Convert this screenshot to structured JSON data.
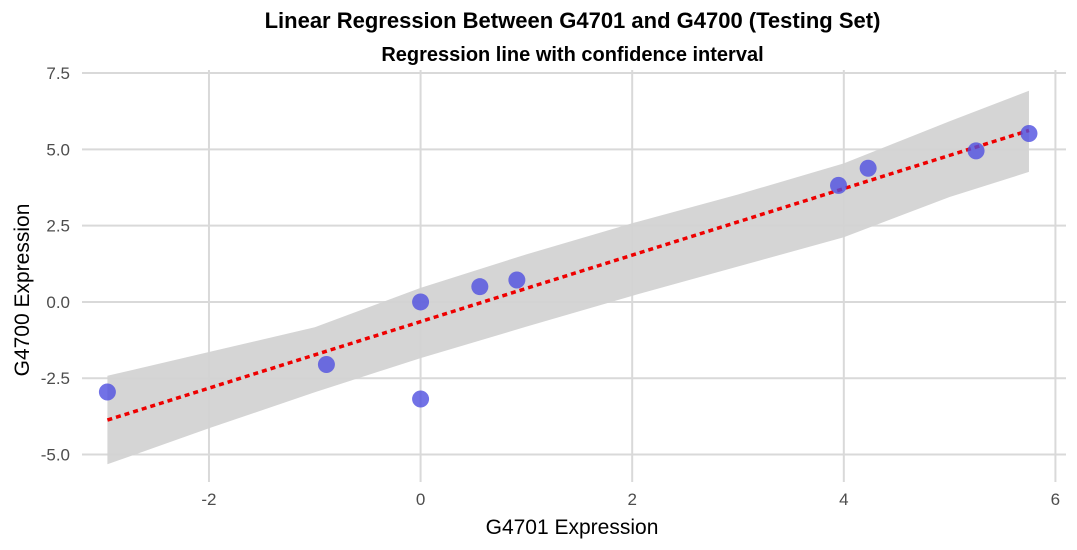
{
  "chart_data": {
    "type": "scatter",
    "title": "Linear Regression Between G4701 and G4700 (Testing Set)",
    "subtitle": "Regression line with confidence interval",
    "xlabel": "G4701 Expression",
    "ylabel": "G4700 Expression",
    "xlim": [
      -3.2,
      6.1
    ],
    "ylim": [
      -5.9,
      7.6
    ],
    "xticks": [
      -2,
      0,
      2,
      4,
      6
    ],
    "xtick_labels": [
      "-2",
      "0",
      "2",
      "4",
      "6"
    ],
    "yticks": [
      -5.0,
      -2.5,
      0.0,
      2.5,
      5.0,
      7.5
    ],
    "ytick_labels": [
      "-5.0",
      "-2.5",
      "0.0",
      "2.5",
      "5.0",
      "7.5"
    ],
    "grid": true,
    "point_color": "#4f4fe0",
    "line_color": "#ee0000",
    "band_color": "#d3d3d3",
    "points": [
      {
        "x": -2.96,
        "y": -2.95
      },
      {
        "x": -0.89,
        "y": -2.05
      },
      {
        "x": 0.0,
        "y": 0.0
      },
      {
        "x": 0.0,
        "y": -3.18
      },
      {
        "x": 0.56,
        "y": 0.5
      },
      {
        "x": 0.91,
        "y": 0.72
      },
      {
        "x": 3.95,
        "y": 3.82
      },
      {
        "x": 4.23,
        "y": 4.38
      },
      {
        "x": 5.25,
        "y": 4.95
      },
      {
        "x": 5.75,
        "y": 5.52
      }
    ],
    "regression_line": {
      "x": [
        -2.96,
        5.75
      ],
      "y": [
        -3.87,
        5.62
      ]
    },
    "confidence_band": {
      "x": [
        -2.96,
        -2.0,
        -1.0,
        0.0,
        1.0,
        2.0,
        3.0,
        4.0,
        5.0,
        5.75
      ],
      "lower": [
        -5.32,
        -4.14,
        -2.96,
        -1.84,
        -0.81,
        0.2,
        1.16,
        2.12,
        3.44,
        4.26
      ],
      "upper": [
        -2.42,
        -1.64,
        -0.83,
        0.46,
        1.56,
        2.58,
        3.52,
        4.54,
        5.92,
        6.92
      ]
    }
  }
}
